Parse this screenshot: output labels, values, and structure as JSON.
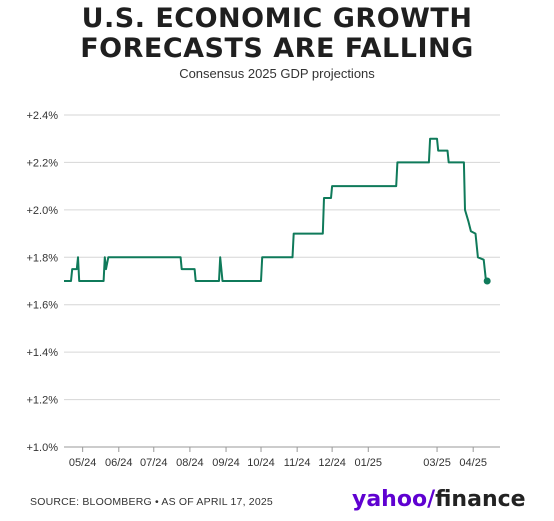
{
  "header": {
    "title_line1": "U.S. ECONOMIC GROWTH",
    "title_line2": "FORECASTS ARE FALLING",
    "subtitle": "Consensus 2025 GDP projections"
  },
  "footer": {
    "source": "SOURCE: BLOOMBERG • AS OF APRIL 17, 2025",
    "logo_yahoo": "yahoo",
    "logo_slash": "/",
    "logo_finance": "finance"
  },
  "colors": {
    "line": "#0f7a5a",
    "grid": "#d6d6d6",
    "axis": "#999999"
  },
  "chart_data": {
    "type": "line",
    "title": "Consensus 2025 GDP projections",
    "xlabel": "",
    "ylabel": "",
    "ylim": [
      1.0,
      2.4
    ],
    "y_ticks": [
      1.0,
      1.2,
      1.4,
      1.6,
      1.8,
      2.0,
      2.2,
      2.4
    ],
    "y_tick_labels": [
      "+1.0%",
      "+1.2%",
      "+1.4%",
      "+1.6%",
      "+1.8%",
      "+2.0%",
      "+2.2%",
      "+2.4%"
    ],
    "x_range": [
      "2024-04-15",
      "2025-04-24"
    ],
    "x_ticks": [
      "2024-05-01",
      "2024-06-01",
      "2024-07-01",
      "2024-08-01",
      "2024-09-01",
      "2024-10-01",
      "2024-11-01",
      "2024-12-01",
      "2025-01-01",
      "2025-03-01",
      "2025-04-01"
    ],
    "x_tick_labels": [
      "05/24",
      "06/24",
      "07/24",
      "08/24",
      "09/24",
      "10/24",
      "11/24",
      "12/24",
      "01/25",
      "03/25",
      "04/25"
    ],
    "grid": "horizontal",
    "series": [
      {
        "points": [
          [
            "2024-04-15",
            1.7
          ],
          [
            "2024-04-21",
            1.7
          ],
          [
            "2024-04-22",
            1.75
          ],
          [
            "2024-04-26",
            1.75
          ],
          [
            "2024-04-27",
            1.8
          ],
          [
            "2024-04-28",
            1.7
          ],
          [
            "2024-05-19",
            1.7
          ],
          [
            "2024-05-20",
            1.8
          ],
          [
            "2024-05-21",
            1.75
          ],
          [
            "2024-05-23",
            1.8
          ],
          [
            "2024-07-24",
            1.8
          ],
          [
            "2024-07-25",
            1.75
          ],
          [
            "2024-08-05",
            1.75
          ],
          [
            "2024-08-06",
            1.7
          ],
          [
            "2024-08-26",
            1.7
          ],
          [
            "2024-08-27",
            1.8
          ],
          [
            "2024-08-29",
            1.7
          ],
          [
            "2024-10-01",
            1.7
          ],
          [
            "2024-10-02",
            1.8
          ],
          [
            "2024-10-28",
            1.8
          ],
          [
            "2024-10-29",
            1.9
          ],
          [
            "2024-11-23",
            1.9
          ],
          [
            "2024-11-24",
            2.05
          ],
          [
            "2024-11-30",
            2.05
          ],
          [
            "2024-12-01",
            2.1
          ],
          [
            "2025-01-25",
            2.1
          ],
          [
            "2025-01-26",
            2.2
          ],
          [
            "2025-02-22",
            2.2
          ],
          [
            "2025-02-23",
            2.3
          ],
          [
            "2025-03-01",
            2.3
          ],
          [
            "2025-03-02",
            2.25
          ],
          [
            "2025-03-10",
            2.25
          ],
          [
            "2025-03-11",
            2.2
          ],
          [
            "2025-03-24",
            2.2
          ],
          [
            "2025-03-25",
            2.0
          ],
          [
            "2025-03-28",
            1.95
          ],
          [
            "2025-03-30",
            1.91
          ],
          [
            "2025-04-03",
            1.9
          ],
          [
            "2025-04-05",
            1.8
          ],
          [
            "2025-04-10",
            1.79
          ],
          [
            "2025-04-12",
            1.7
          ],
          [
            "2025-04-13",
            1.7
          ]
        ],
        "last_point_marker": true
      }
    ]
  }
}
